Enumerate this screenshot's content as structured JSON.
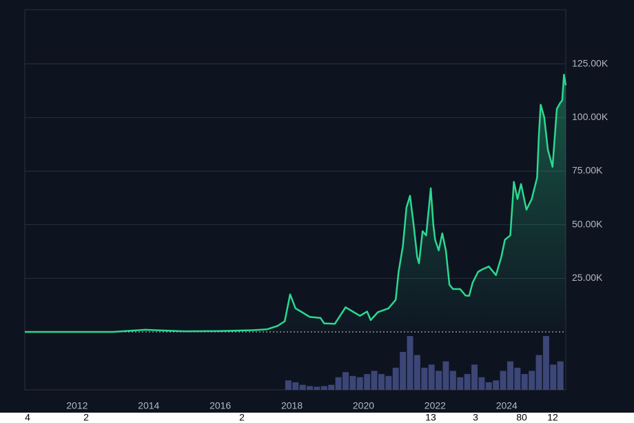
{
  "chart_data": {
    "type": "line",
    "x": [
      2010.54,
      2013.0,
      2013.9,
      2014.5,
      2015.0,
      2016.0,
      2016.9,
      2017.3,
      2017.6,
      2017.8,
      2017.95,
      2018.1,
      2018.3,
      2018.5,
      2018.8,
      2018.9,
      2019.2,
      2019.5,
      2019.7,
      2019.9,
      2020.1,
      2020.2,
      2020.4,
      2020.7,
      2020.9,
      2020.98,
      2021.1,
      2021.2,
      2021.3,
      2021.4,
      2021.5,
      2021.55,
      2021.65,
      2021.75,
      2021.85,
      2021.88,
      2021.95,
      2022.0,
      2022.1,
      2022.2,
      2022.3,
      2022.4,
      2022.5,
      2022.7,
      2022.85,
      2022.95,
      2023.05,
      2023.2,
      2023.3,
      2023.5,
      2023.7,
      2023.85,
      2023.95,
      2024.1,
      2024.2,
      2024.3,
      2024.4,
      2024.55,
      2024.7,
      2024.85,
      2024.9,
      2024.95,
      2025.05,
      2025.15,
      2025.28,
      2025.4,
      2025.5,
      2025.55,
      2025.6,
      2025.65
    ],
    "series": [
      {
        "color": "#2bd98f",
        "values": [
          0,
          13,
          1000,
          600,
          300,
          400,
          800,
          1200,
          2800,
          5000,
          17500,
          11000,
          9000,
          7000,
          6500,
          4000,
          3800,
          11500,
          9500,
          7500,
          9500,
          5500,
          9200,
          11000,
          15000,
          28000,
          40000,
          58000,
          63500,
          50000,
          35000,
          32000,
          47000,
          45000,
          62000,
          67000,
          50000,
          43000,
          38000,
          46000,
          38000,
          22000,
          20000,
          20000,
          17000,
          16800,
          23000,
          28000,
          29000,
          30500,
          26500,
          35000,
          43000,
          45000,
          70000,
          62000,
          69000,
          57000,
          62000,
          72000,
          92000,
          106000,
          100000,
          85000,
          77000,
          104000,
          107000,
          108000,
          120000,
          115000
        ]
      }
    ],
    "volume": {
      "color": "#3c4677",
      "x": [
        2017.9,
        2018.1,
        2018.3,
        2018.5,
        2018.7,
        2018.9,
        2019.1,
        2019.3,
        2019.5,
        2019.7,
        2019.9,
        2020.1,
        2020.3,
        2020.5,
        2020.7,
        2020.9,
        2021.1,
        2021.3,
        2021.5,
        2021.7,
        2021.9,
        2022.1,
        2022.3,
        2022.5,
        2022.7,
        2022.9,
        2023.1,
        2023.3,
        2023.5,
        2023.7,
        2023.9,
        2024.1,
        2024.3,
        2024.5,
        2024.7,
        2024.9,
        2025.1,
        2025.3,
        2025.5
      ],
      "values": [
        15,
        12,
        8,
        6,
        5,
        6,
        8,
        20,
        28,
        22,
        20,
        25,
        30,
        25,
        22,
        35,
        60,
        85,
        55,
        35,
        40,
        30,
        45,
        30,
        20,
        25,
        40,
        20,
        12,
        15,
        30,
        45,
        35,
        25,
        30,
        55,
        85,
        40,
        45
      ]
    },
    "xlim": [
      2010.54,
      2025.65
    ],
    "xticks": [
      2012,
      2014,
      2016,
      2018,
      2020,
      2022,
      2024
    ],
    "ylim": [
      0,
      150000
    ],
    "yticks": [
      {
        "value": 25000,
        "label": "25.00K"
      },
      {
        "value": 50000,
        "label": "50.00K"
      },
      {
        "value": 75000,
        "label": "75.00K"
      },
      {
        "value": 100000,
        "label": "100.00K"
      },
      {
        "value": 125000,
        "label": "125.00K"
      }
    ],
    "grid": true,
    "annotations": [
      "4",
      "2",
      "2",
      "13",
      "3",
      "80",
      "12"
    ]
  }
}
